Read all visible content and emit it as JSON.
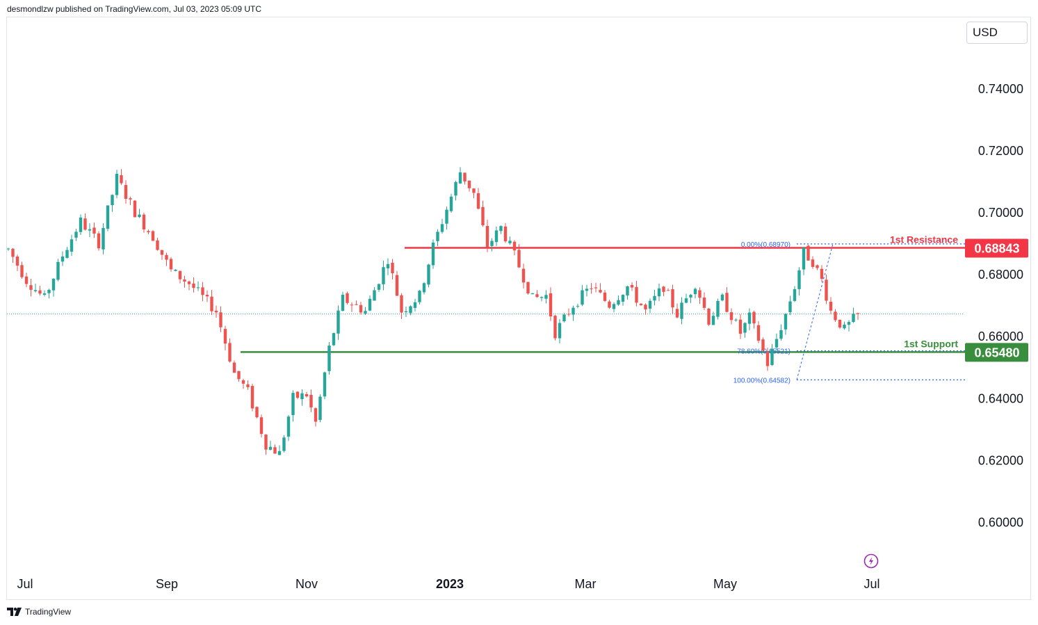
{
  "header": {
    "published_by": "desmondlzw published on TradingView.com, Jul 03, 2023 05:09 UTC"
  },
  "footer": {
    "brand": "TradingView"
  },
  "currency": "USD",
  "colors": {
    "up": "#26a69a",
    "down": "#ef5350",
    "resistance": "#f23645",
    "support": "#388e3c",
    "fib": "#2962ff",
    "current": "#26a69a"
  },
  "chart_data": {
    "type": "candlestick",
    "title": "",
    "y_axis": {
      "ticks": [
        "0.74000",
        "0.72000",
        "0.70000",
        "0.68000",
        "0.66000",
        "0.64000",
        "0.62000",
        "0.60000"
      ],
      "ylim": [
        0.592,
        0.752
      ]
    },
    "x_axis": {
      "labels": [
        "Jul",
        "Sep",
        "Nov",
        "2023",
        "Mar",
        "May",
        "Jul"
      ]
    },
    "current_price": 0.6671,
    "levels": [
      {
        "name": "1st Resistance",
        "price": 0.68843,
        "price_label": "0.68843",
        "kind": "resistance",
        "start": "Dec 2022"
      },
      {
        "name": "1st Support",
        "price": 0.6548,
        "price_label": "0.65480",
        "kind": "support",
        "start": "Oct 2022"
      }
    ],
    "fibonacci": [
      {
        "label": "0.00%(0.68970)",
        "price": 0.6897
      },
      {
        "label": "78.60%(0.65521)",
        "price": 0.65521
      },
      {
        "label": "100.00%(0.64582)",
        "price": 0.64582
      }
    ],
    "anchors": [
      [
        0,
        0.688
      ],
      [
        4,
        0.678
      ],
      [
        8,
        0.672
      ],
      [
        12,
        0.686
      ],
      [
        16,
        0.697
      ],
      [
        20,
        0.69
      ],
      [
        24,
        0.711
      ],
      [
        28,
        0.7
      ],
      [
        32,
        0.692
      ],
      [
        36,
        0.681
      ],
      [
        40,
        0.677
      ],
      [
        46,
        0.668
      ],
      [
        50,
        0.648
      ],
      [
        53,
        0.642
      ],
      [
        57,
        0.625
      ],
      [
        60,
        0.622
      ],
      [
        63,
        0.64
      ],
      [
        66,
        0.641
      ],
      [
        68,
        0.632
      ],
      [
        71,
        0.656
      ],
      [
        74,
        0.672
      ],
      [
        79,
        0.668
      ],
      [
        84,
        0.685
      ],
      [
        87,
        0.668
      ],
      [
        91,
        0.673
      ],
      [
        94,
        0.689
      ],
      [
        100,
        0.713
      ],
      [
        103,
        0.706
      ],
      [
        106,
        0.689
      ],
      [
        109,
        0.695
      ],
      [
        112,
        0.686
      ],
      [
        116,
        0.672
      ],
      [
        119,
        0.673
      ],
      [
        121,
        0.661
      ],
      [
        125,
        0.67
      ],
      [
        129,
        0.676
      ],
      [
        133,
        0.67
      ],
      [
        137,
        0.676
      ],
      [
        141,
        0.668
      ],
      [
        145,
        0.676
      ],
      [
        148,
        0.667
      ],
      [
        152,
        0.677
      ],
      [
        155,
        0.665
      ],
      [
        158,
        0.672
      ],
      [
        162,
        0.661
      ],
      [
        164,
        0.666
      ],
      [
        166,
        0.659
      ],
      [
        168,
        0.651
      ],
      [
        172,
        0.667
      ],
      [
        174,
        0.676
      ],
      [
        176,
        0.687
      ],
      [
        178,
        0.684
      ],
      [
        180,
        0.678
      ],
      [
        182,
        0.668
      ],
      [
        185,
        0.662
      ],
      [
        188,
        0.6671
      ]
    ]
  }
}
